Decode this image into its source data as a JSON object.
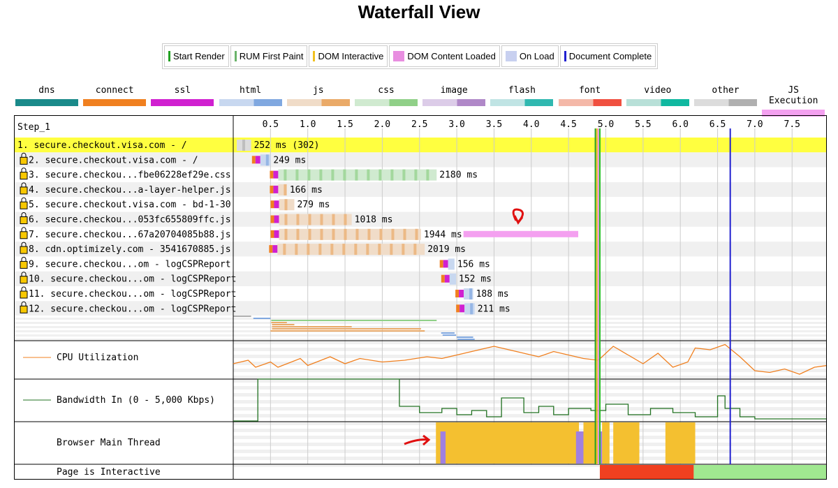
{
  "title": "Waterfall View",
  "legend": [
    {
      "label": "Start Render",
      "color": "#22a022"
    },
    {
      "label": "RUM First Paint",
      "color": "#6ab36a"
    },
    {
      "label": "DOM Interactive",
      "color": "#f0c020"
    },
    {
      "label": "DOM Content Loaded",
      "color": "#e88ee0"
    },
    {
      "label": "On Load",
      "color": "#c8d0f0"
    },
    {
      "label": "Document Complete",
      "color": "#2020d0"
    }
  ],
  "types": [
    {
      "label": "dns",
      "c1": "#1a8a8a",
      "c2": "#1a8a8a"
    },
    {
      "label": "connect",
      "c1": "#f08020",
      "c2": "#f08020"
    },
    {
      "label": "ssl",
      "c1": "#d020d0",
      "c2": "#d020d0"
    },
    {
      "label": "html",
      "c1": "#c8d8f0",
      "c2": "#80a8e0"
    },
    {
      "label": "js",
      "c1": "#f0dcc8",
      "c2": "#eaaa68"
    },
    {
      "label": "css",
      "c1": "#d0ead0",
      "c2": "#90d088"
    },
    {
      "label": "image",
      "c1": "#dccce8",
      "c2": "#b088c8"
    },
    {
      "label": "flash",
      "c1": "#c0e4e4",
      "c2": "#30b8b0"
    },
    {
      "label": "font",
      "c1": "#f4b8a8",
      "c2": "#f05040"
    },
    {
      "label": "video",
      "c1": "#b8e0d8",
      "c2": "#10b8a0"
    },
    {
      "label": "other",
      "c1": "#dcdcdc",
      "c2": "#b0b0b0"
    },
    {
      "label": "JS Execution",
      "c1": "#f4a0f0",
      "c2": "#f4a0f0"
    }
  ],
  "step": "Step_1",
  "axis_ticks": [
    "0.5",
    "1.0",
    "1.5",
    "2.0",
    "2.5",
    "3.0",
    "3.5",
    "4.0",
    "4.5",
    "5.0",
    "5.5",
    "6.0",
    "6.5",
    "7.0",
    "7.5"
  ],
  "requests": [
    {
      "label": " 1. secure.checkout.visa.com - /",
      "start": 0.0,
      "end": 0.24,
      "time": "252 ms (302)",
      "type": "other",
      "secure": false,
      "highlight": true
    },
    {
      "label": " 2. secure.checkout.visa.com - /",
      "start": 0.27,
      "end": 0.5,
      "time": "249 ms",
      "type": "html",
      "secure": true
    },
    {
      "label": " 3. secure.checkou...fbe06228ef29e.css",
      "start": 0.51,
      "end": 2.73,
      "time": "2180 ms",
      "type": "css",
      "secure": true
    },
    {
      "label": " 4. secure.checkou...a-layer-helper.js",
      "start": 0.51,
      "end": 0.72,
      "time": "166 ms",
      "type": "js",
      "secure": true
    },
    {
      "label": " 5. secure.checkout.visa.com - bd-1-30",
      "start": 0.52,
      "end": 0.82,
      "time": "279 ms",
      "type": "js",
      "secure": true
    },
    {
      "label": " 6. secure.checkou...053fc655809ffc.js",
      "start": 0.52,
      "end": 1.59,
      "time": "1018 ms",
      "type": "js",
      "secure": true
    },
    {
      "label": " 7. secure.checkou...67a20704085b88.js",
      "start": 0.52,
      "end": 2.52,
      "time": "1944 ms",
      "type": "js",
      "secure": true,
      "js_exec": [
        3.09,
        4.63
      ]
    },
    {
      "label": " 8. cdn.optimizely.com - 3541670885.js",
      "start": 0.5,
      "end": 2.57,
      "time": "2019 ms",
      "type": "js",
      "secure": true
    },
    {
      "label": " 9. secure.checkou...om - logCSPReport",
      "start": 2.79,
      "end": 2.97,
      "time": "156 ms",
      "type": "html",
      "secure": true
    },
    {
      "label": "10. secure.checkou...om - logCSPReport",
      "start": 2.81,
      "end": 2.99,
      "time": "152 ms",
      "type": "html",
      "secure": true
    },
    {
      "label": "11. secure.checkou...om - logCSPReport",
      "start": 3.0,
      "end": 3.22,
      "time": "188 ms",
      "type": "html",
      "secure": true
    },
    {
      "label": "12. secure.checkou...om - logCSPReport",
      "start": 3.01,
      "end": 3.24,
      "time": "211 ms",
      "type": "html",
      "secure": true
    }
  ],
  "markers": [
    {
      "name": "start-render",
      "t": 4.86,
      "color": "#22a022"
    },
    {
      "name": "dom-interactive",
      "t": 4.88,
      "color": "#f0c020"
    },
    {
      "name": "dom-content-loaded",
      "t": 4.9,
      "color": "#e88ee0"
    },
    {
      "name": "rum-first-paint",
      "t": 4.92,
      "color": "#22c022"
    },
    {
      "name": "document-complete",
      "t": 6.67,
      "color": "#2020d0"
    }
  ],
  "cpu": {
    "label": "CPU Utilization",
    "color": "#f08020",
    "t": [
      0,
      0.2,
      0.3,
      0.5,
      0.6,
      0.9,
      1.0,
      1.3,
      1.5,
      1.7,
      2.0,
      2.3,
      2.6,
      2.8,
      3.0,
      3.2,
      3.4,
      3.5,
      3.7,
      3.9,
      4.1,
      4.3,
      4.5,
      4.7,
      4.9,
      5.1,
      5.3,
      5.5,
      5.7,
      5.9,
      6.1,
      6.2,
      6.4,
      6.6,
      6.8,
      7.0,
      7.2,
      7.4,
      7.6,
      7.8,
      7.97
    ],
    "v": [
      40,
      50,
      30,
      45,
      30,
      55,
      35,
      60,
      40,
      55,
      45,
      50,
      60,
      55,
      65,
      75,
      85,
      90,
      80,
      70,
      60,
      75,
      65,
      55,
      50,
      90,
      65,
      40,
      70,
      30,
      45,
      85,
      80,
      95,
      60,
      20,
      15,
      25,
      10,
      30,
      35
    ]
  },
  "bandwidth": {
    "label": "Bandwidth In (0 - 5,000 Kbps)",
    "color": "#207020",
    "t": [
      0,
      0.32,
      0.33,
      2.22,
      2.23,
      2.5,
      2.8,
      3.0,
      3.2,
      3.4,
      3.6,
      3.9,
      4.1,
      4.3,
      4.5,
      4.8,
      5.0,
      5.3,
      5.6,
      5.9,
      6.2,
      6.5,
      6.6,
      6.8,
      7.0,
      7.97
    ],
    "v": [
      0,
      0,
      100,
      100,
      35,
      20,
      30,
      15,
      25,
      10,
      55,
      20,
      35,
      15,
      30,
      25,
      40,
      15,
      30,
      20,
      10,
      60,
      30,
      10,
      5,
      5
    ]
  },
  "main_thread": {
    "label": "Browser Main Thread",
    "script_color": "#f4c030",
    "layout_color": "#a080e0",
    "script_blocks": [
      [
        2.72,
        4.64
      ],
      [
        4.7,
        4.9
      ],
      [
        4.95,
        5.05
      ],
      [
        5.1,
        5.45
      ],
      [
        5.8,
        6.2
      ]
    ],
    "layout_blocks": [
      [
        2.78,
        2.85
      ],
      [
        4.6,
        4.7
      ],
      [
        4.9,
        4.95
      ]
    ]
  },
  "interactive": {
    "label": "Page is Interactive",
    "blocked_color": "#f04020",
    "ok_color": "#a0e890",
    "blocked": [
      [
        4.92,
        6.18
      ]
    ],
    "interactive_from": 6.18,
    "end": 7.97
  }
}
